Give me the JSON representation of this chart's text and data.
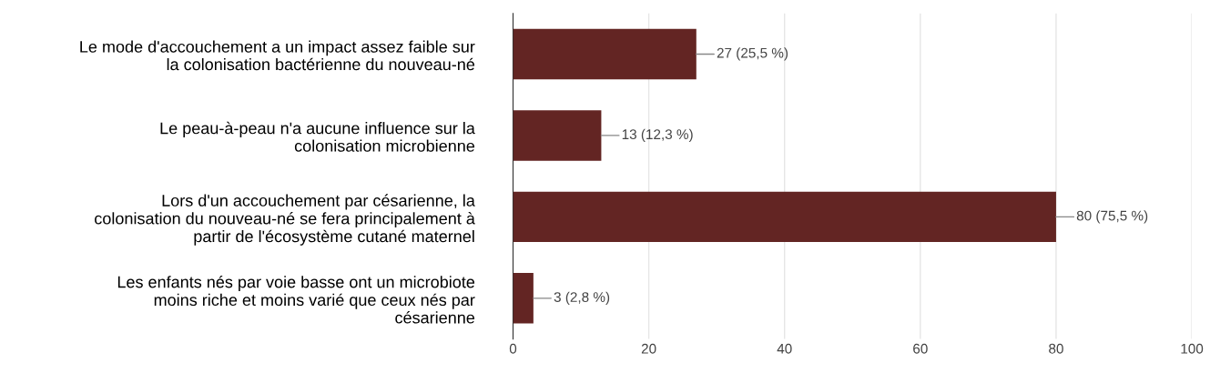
{
  "chart_data": {
    "type": "bar",
    "orientation": "horizontal",
    "categories": [
      "Le mode d'accouchement a un impact assez faible sur\nla colonisation bactérienne du nouveau-né",
      "Le peau-à-peau n'a aucune influence sur la\ncolonisation microbienne",
      "Lors d'un accouchement par césarienne, la\ncolonisation du nouveau-né se fera principalement à\npartir de l'écosystème cutané maternel",
      "Les enfants nés par voie basse ont un microbiote\nmoins riche et moins varié que ceux nés par\ncésarienne"
    ],
    "values": [
      27,
      13,
      80,
      3
    ],
    "value_labels": [
      "27 (25,5 %)",
      "13 (12,3 %)",
      "80 (75,5 %)",
      "3 (2,8 %)"
    ],
    "color": "#632523",
    "xlim": [
      0,
      100
    ],
    "xticks": [
      0,
      20,
      40,
      60,
      80,
      100
    ],
    "grid": "x",
    "legend": false
  }
}
